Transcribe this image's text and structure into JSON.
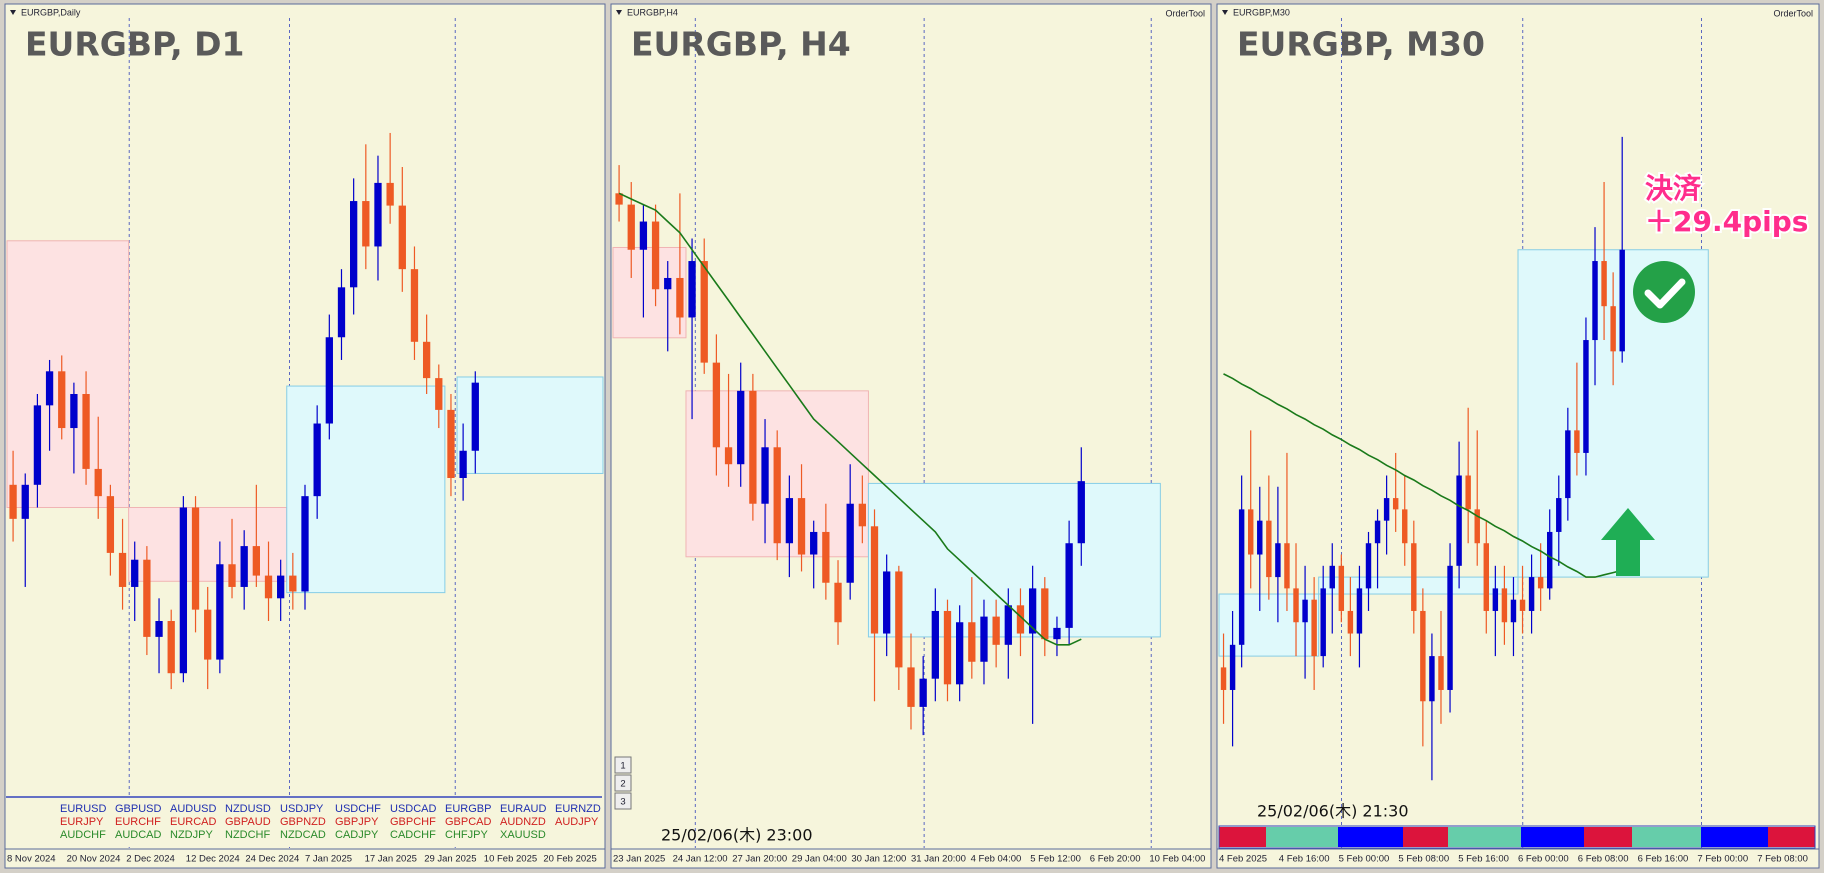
{
  "chart_data": [
    {
      "type": "candlestick",
      "window_label": "EURGBP,Daily",
      "title": "EURGBP, D1",
      "x_labels": [
        "8 Nov 2024",
        "20 Nov 2024",
        "2 Dec 2024",
        "12 Dec 2024",
        "24 Dec 2024",
        "7 Jan 2025",
        "17 Jan 2025",
        "29 Jan 2025",
        "10 Feb 2025",
        "20 Feb 2025"
      ],
      "ylim": [
        0.8185,
        0.8548
      ],
      "up_color": "#0000cc",
      "down_color": "#ee5a24",
      "candles": [
        [
          0.8345,
          0.836,
          0.832,
          0.833
        ],
        [
          0.833,
          0.835,
          0.83,
          0.8345
        ],
        [
          0.8345,
          0.8385,
          0.8335,
          0.838
        ],
        [
          0.838,
          0.84,
          0.836,
          0.8395
        ],
        [
          0.8395,
          0.8402,
          0.8365,
          0.837
        ],
        [
          0.837,
          0.839,
          0.835,
          0.8385
        ],
        [
          0.8385,
          0.8395,
          0.8345,
          0.8352
        ],
        [
          0.8352,
          0.8375,
          0.833,
          0.834
        ],
        [
          0.834,
          0.8345,
          0.8305,
          0.8315
        ],
        [
          0.8315,
          0.833,
          0.829,
          0.83
        ],
        [
          0.83,
          0.832,
          0.8285,
          0.8312
        ],
        [
          0.8312,
          0.8318,
          0.827,
          0.8278
        ],
        [
          0.8278,
          0.8295,
          0.8262,
          0.8285
        ],
        [
          0.8285,
          0.829,
          0.8255,
          0.8262
        ],
        [
          0.8262,
          0.834,
          0.8258,
          0.8335
        ],
        [
          0.8335,
          0.834,
          0.828,
          0.829
        ],
        [
          0.829,
          0.83,
          0.8255,
          0.8268
        ],
        [
          0.8268,
          0.832,
          0.8262,
          0.831
        ],
        [
          0.831,
          0.833,
          0.8295,
          0.83
        ],
        [
          0.83,
          0.8325,
          0.829,
          0.8318
        ],
        [
          0.8318,
          0.8345,
          0.83,
          0.8305
        ],
        [
          0.8305,
          0.832,
          0.8285,
          0.8295
        ],
        [
          0.8295,
          0.8312,
          0.8285,
          0.8305
        ],
        [
          0.8305,
          0.8315,
          0.829,
          0.8298
        ],
        [
          0.8298,
          0.8345,
          0.829,
          0.834
        ],
        [
          0.834,
          0.838,
          0.833,
          0.8372
        ],
        [
          0.8372,
          0.842,
          0.8365,
          0.841
        ],
        [
          0.841,
          0.844,
          0.84,
          0.8432
        ],
        [
          0.8432,
          0.848,
          0.842,
          0.847
        ],
        [
          0.847,
          0.8495,
          0.844,
          0.845
        ],
        [
          0.845,
          0.849,
          0.8435,
          0.8478
        ],
        [
          0.8478,
          0.85,
          0.846,
          0.8468
        ],
        [
          0.8468,
          0.8485,
          0.843,
          0.844
        ],
        [
          0.844,
          0.845,
          0.84,
          0.8408
        ],
        [
          0.8408,
          0.842,
          0.8385,
          0.8392
        ],
        [
          0.8392,
          0.8398,
          0.837,
          0.8378
        ],
        [
          0.8378,
          0.8385,
          0.834,
          0.8348
        ],
        [
          0.8348,
          0.8372,
          0.8338,
          0.836
        ],
        [
          0.836,
          0.8395,
          0.835,
          0.839
        ]
      ],
      "zones": [
        {
          "from": 0,
          "to": 9,
          "low": 0.8335,
          "high": 0.84525,
          "color": "#fde2e2",
          "edge": "#f0b4b4"
        },
        {
          "from": 10,
          "to": 22,
          "low": 0.83025,
          "high": 0.8335,
          "color": "#fde2e2",
          "edge": "#f0b4b4"
        },
        {
          "from": 23,
          "to": 35,
          "low": 0.82975,
          "high": 0.83885,
          "color": "#dff9fb",
          "edge": "#86cde6"
        },
        {
          "from": 37,
          "to": 48,
          "low": 0.835,
          "high": 0.83925,
          "color": "#dff9fb",
          "edge": "#86cde6"
        }
      ]
    },
    {
      "type": "candlestick",
      "window_label": "EURGBP,H4",
      "title": "EURGBP, H4",
      "order_tool": "OrderTool",
      "x_labels": [
        "23 Jan 2025",
        "24 Jan 12:00",
        "27 Jan 20:00",
        "29 Jan 04:00",
        "30 Jan 12:00",
        "31 Jan 20:00",
        "4 Feb 04:00",
        "5 Feb 12:00",
        "6 Feb 20:00",
        "10 Feb 04:00"
      ],
      "ylim": [
        0.8284,
        0.843
      ],
      "up_color": "#0000cc",
      "down_color": "#ee5a24",
      "ma_color": "#1a7a1a",
      "timestamp": "25/02/06(木) 23:00",
      "buttons": [
        "1",
        "2",
        "3"
      ],
      "candles": [
        [
          0.84,
          0.8405,
          0.8395,
          0.8398
        ],
        [
          0.8398,
          0.8402,
          0.8385,
          0.839
        ],
        [
          0.839,
          0.8398,
          0.8378,
          0.8395
        ],
        [
          0.8395,
          0.8398,
          0.838,
          0.8383
        ],
        [
          0.8383,
          0.8388,
          0.8372,
          0.8385
        ],
        [
          0.8385,
          0.84,
          0.8375,
          0.8378
        ],
        [
          0.8378,
          0.8392,
          0.836,
          0.8388
        ],
        [
          0.8388,
          0.8392,
          0.8368,
          0.837
        ],
        [
          0.837,
          0.8375,
          0.835,
          0.8355
        ],
        [
          0.8355,
          0.8368,
          0.8348,
          0.8352
        ],
        [
          0.8352,
          0.837,
          0.8348,
          0.8365
        ],
        [
          0.8365,
          0.8368,
          0.8342,
          0.8345
        ],
        [
          0.8345,
          0.836,
          0.8338,
          0.8355
        ],
        [
          0.8355,
          0.8358,
          0.8335,
          0.8338
        ],
        [
          0.8338,
          0.835,
          0.8332,
          0.8346
        ],
        [
          0.8346,
          0.8352,
          0.8333,
          0.8336
        ],
        [
          0.8336,
          0.8342,
          0.833,
          0.834
        ],
        [
          0.834,
          0.8345,
          0.8328,
          0.8331
        ],
        [
          0.8331,
          0.8335,
          0.832,
          0.8324
        ],
        [
          0.8331,
          0.8352,
          0.8328,
          0.8345
        ],
        [
          0.8345,
          0.835,
          0.8338,
          0.8341
        ],
        [
          0.8341,
          0.8344,
          0.831,
          0.8322
        ],
        [
          0.8322,
          0.8336,
          0.8318,
          0.8333
        ],
        [
          0.8333,
          0.8334,
          0.8312,
          0.8316
        ],
        [
          0.8316,
          0.8322,
          0.8305,
          0.8309
        ],
        [
          0.8309,
          0.8318,
          0.8304,
          0.8314
        ],
        [
          0.8314,
          0.833,
          0.831,
          0.8326
        ],
        [
          0.8326,
          0.8328,
          0.831,
          0.8313
        ],
        [
          0.8313,
          0.8327,
          0.831,
          0.8324
        ],
        [
          0.8324,
          0.8332,
          0.8314,
          0.8317
        ],
        [
          0.8317,
          0.8328,
          0.8313,
          0.8325
        ],
        [
          0.8325,
          0.8328,
          0.8316,
          0.832
        ],
        [
          0.832,
          0.833,
          0.8314,
          0.8327
        ],
        [
          0.8327,
          0.833,
          0.8318,
          0.8322
        ],
        [
          0.8322,
          0.8334,
          0.8306,
          0.833
        ],
        [
          0.833,
          0.8332,
          0.8318,
          0.8321
        ],
        [
          0.8321,
          0.8325,
          0.8318,
          0.8323
        ],
        [
          0.8323,
          0.8342,
          0.832,
          0.8338
        ],
        [
          0.8338,
          0.8355,
          0.8334,
          0.8349
        ]
      ],
      "ma": [
        0.84,
        0.8399,
        0.8398,
        0.8397,
        0.8395,
        0.8393,
        0.839,
        0.8387,
        0.8384,
        0.8381,
        0.8378,
        0.8375,
        0.8372,
        0.8369,
        0.8366,
        0.8363,
        0.836,
        0.8358,
        0.8356,
        0.8354,
        0.8352,
        0.835,
        0.8348,
        0.8346,
        0.8344,
        0.8342,
        0.834,
        0.8337,
        0.8335,
        0.8333,
        0.8331,
        0.8329,
        0.8327,
        0.8325,
        0.8323,
        0.8321,
        0.832,
        0.832,
        0.8321
      ],
      "zones": [
        {
          "from": 0,
          "to": 5,
          "low": 0.83744,
          "high": 0.83904,
          "color": "#fde2e2",
          "edge": "#f0b4b4"
        },
        {
          "from": 6,
          "to": 20,
          "low": 0.83356,
          "high": 0.8365,
          "color": "#fde2e2",
          "edge": "#f0b4b4"
        },
        {
          "from": 21,
          "to": 44,
          "low": 0.83214,
          "high": 0.83486,
          "color": "#dff9fb",
          "edge": "#86cde6"
        }
      ]
    },
    {
      "type": "candlestick",
      "window_label": "EURGBP,M30",
      "title": "EURGBP, M30",
      "order_tool": "OrderTool",
      "x_labels": [
        "4 Feb 2025",
        "4 Feb 16:00",
        "5 Feb 00:00",
        "5 Feb 08:00",
        "5 Feb 16:00",
        "6 Feb 00:00",
        "6 Feb 08:00",
        "6 Feb 16:00",
        "7 Feb 00:00",
        "7 Feb 08:00"
      ],
      "ylim": [
        0.8297,
        0.837
      ],
      "up_color": "#0000cc",
      "down_color": "#ee5a24",
      "ma_color": "#1a7a1a",
      "timestamp": "25/02/06(木) 21:30",
      "annotation": [
        "決済",
        "＋29.4pips"
      ],
      "candles": [
        [
          0.8313,
          0.8316,
          0.8308,
          0.8311
        ],
        [
          0.8311,
          0.8318,
          0.8306,
          0.8315
        ],
        [
          0.8315,
          0.833,
          0.8313,
          0.8327
        ],
        [
          0.8327,
          0.8334,
          0.832,
          0.8323
        ],
        [
          0.8323,
          0.8329,
          0.8318,
          0.8326
        ],
        [
          0.8326,
          0.833,
          0.8319,
          0.8321
        ],
        [
          0.8321,
          0.8329,
          0.8317,
          0.8324
        ],
        [
          0.8324,
          0.8332,
          0.8318,
          0.832
        ],
        [
          0.832,
          0.8324,
          0.8314,
          0.8317
        ],
        [
          0.8317,
          0.8322,
          0.8312,
          0.8319
        ],
        [
          0.8319,
          0.8321,
          0.8311,
          0.8314
        ],
        [
          0.8314,
          0.8322,
          0.8313,
          0.832
        ],
        [
          0.832,
          0.8324,
          0.8316,
          0.8322
        ],
        [
          0.8322,
          0.8323,
          0.8317,
          0.8318
        ],
        [
          0.8318,
          0.8321,
          0.8314,
          0.8316
        ],
        [
          0.8316,
          0.8322,
          0.8313,
          0.832
        ],
        [
          0.832,
          0.8325,
          0.8318,
          0.8324
        ],
        [
          0.8324,
          0.8327,
          0.832,
          0.8326
        ],
        [
          0.8326,
          0.833,
          0.8323,
          0.8328
        ],
        [
          0.8328,
          0.8332,
          0.8325,
          0.8327
        ],
        [
          0.8327,
          0.833,
          0.8322,
          0.8324
        ],
        [
          0.8324,
          0.8326,
          0.8316,
          0.8318
        ],
        [
          0.8318,
          0.832,
          0.8306,
          0.831
        ],
        [
          0.831,
          0.8316,
          0.8303,
          0.8314
        ],
        [
          0.8314,
          0.8318,
          0.8308,
          0.8311
        ],
        [
          0.8311,
          0.8324,
          0.8309,
          0.8322
        ],
        [
          0.8322,
          0.8333,
          0.832,
          0.833
        ],
        [
          0.833,
          0.8336,
          0.8324,
          0.8327
        ],
        [
          0.8327,
          0.8334,
          0.8322,
          0.8324
        ],
        [
          0.8324,
          0.8326,
          0.8316,
          0.8318
        ],
        [
          0.8318,
          0.8322,
          0.8314,
          0.832
        ],
        [
          0.832,
          0.8322,
          0.8315,
          0.8317
        ],
        [
          0.8317,
          0.8321,
          0.8314,
          0.8319
        ],
        [
          0.8319,
          0.8322,
          0.8316,
          0.8318
        ],
        [
          0.8318,
          0.8323,
          0.8316,
          0.8321
        ],
        [
          0.8321,
          0.8324,
          0.8318,
          0.832
        ],
        [
          0.832,
          0.8327,
          0.8319,
          0.8325
        ],
        [
          0.8325,
          0.833,
          0.8322,
          0.8328
        ],
        [
          0.8328,
          0.8336,
          0.8326,
          0.8334
        ],
        [
          0.8334,
          0.834,
          0.833,
          0.8332
        ],
        [
          0.8332,
          0.8344,
          0.833,
          0.8342
        ],
        [
          0.8342,
          0.8352,
          0.8338,
          0.8349
        ],
        [
          0.8349,
          0.8356,
          0.8342,
          0.8345
        ],
        [
          0.8345,
          0.8348,
          0.8338,
          0.8341
        ],
        [
          0.8341,
          0.836,
          0.834,
          0.835
        ]
      ],
      "ma": [
        0.8339,
        0.83386,
        0.83381,
        0.83377,
        0.83372,
        0.83368,
        0.83363,
        0.83359,
        0.83354,
        0.8335,
        0.83345,
        0.83341,
        0.83336,
        0.83332,
        0.83327,
        0.83323,
        0.83318,
        0.83314,
        0.83309,
        0.83305,
        0.833,
        0.83296,
        0.83291,
        0.83287,
        0.83282,
        0.83278,
        0.83273,
        0.83269,
        0.83264,
        0.8326,
        0.83255,
        0.83251,
        0.83246,
        0.83242,
        0.83237,
        0.83233,
        0.83228,
        0.83224,
        0.83219,
        0.83215,
        0.8321,
        0.8321,
        0.83212,
        0.83214,
        0.83216
      ],
      "zones": [
        {
          "from": 0,
          "to": 10,
          "low": 0.8314,
          "high": 0.83195,
          "color": "#dff9fb",
          "edge": "#86cde6"
        },
        {
          "from": 11,
          "to": 32,
          "low": 0.83195,
          "high": 0.8321,
          "color": "#dff9fb",
          "edge": "#86cde6"
        },
        {
          "from": 33,
          "to": 53,
          "low": 0.8321,
          "high": 0.835,
          "color": "#dff9fb",
          "edge": "#86cde6"
        }
      ]
    }
  ],
  "symbol_table": {
    "rows": [
      [
        "EURUSD",
        "GBPUSD",
        "AUDUSD",
        "NZDUSD",
        "USDJPY",
        "USDCHF",
        "USDCAD",
        "EURGBP",
        "EURAUD",
        "EURNZD"
      ],
      [
        "EURJPY",
        "EURCHF",
        "EURCAD",
        "GBPAUD",
        "GBPNZD",
        "GBPJPY",
        "GBPCHF",
        "GBPCAD",
        "AUDNZD",
        "AUDJPY"
      ],
      [
        "AUDCHF",
        "AUDCAD",
        "NZDJPY",
        "NZDCHF",
        "NZDCAD",
        "CADJPY",
        "CADCHF",
        "CHFJPY",
        "XAUUSD"
      ]
    ],
    "row_colors": [
      "#1f2fb0",
      "#d02020",
      "#2a8a2a"
    ]
  }
}
